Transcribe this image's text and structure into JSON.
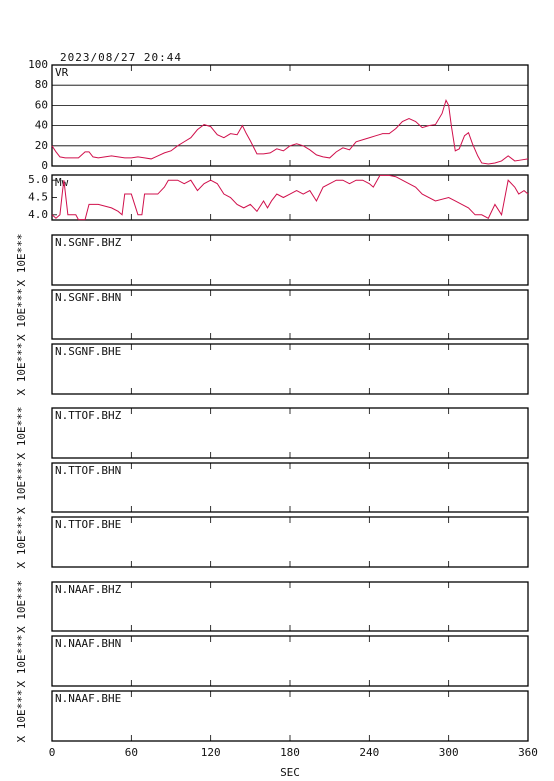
{
  "chart_data": [
    {
      "type": "line",
      "title": "2023/08/27 20:44",
      "ylabel": "VR",
      "color": "#d0104c",
      "x": [
        0,
        3,
        6,
        10,
        15,
        20,
        25,
        28,
        31,
        35,
        40,
        45,
        50,
        55,
        60,
        65,
        70,
        75,
        80,
        85,
        90,
        95,
        100,
        105,
        110,
        115,
        120,
        125,
        130,
        135,
        140,
        144,
        147,
        150,
        155,
        160,
        165,
        170,
        175,
        180,
        185,
        190,
        195,
        200,
        205,
        210,
        215,
        220,
        225,
        230,
        235,
        240,
        245,
        250,
        255,
        260,
        265,
        270,
        275,
        280,
        285,
        290,
        295,
        298,
        300,
        302,
        305,
        308,
        312,
        315,
        318,
        322,
        325,
        330,
        335,
        340,
        345,
        350,
        355,
        360
      ],
      "values": [
        20,
        14,
        9,
        8,
        8,
        8,
        14,
        14,
        9,
        8,
        9,
        10,
        9,
        8,
        8,
        9,
        8,
        7,
        10,
        13,
        15,
        20,
        24,
        28,
        36,
        41,
        39,
        31,
        28,
        32,
        31,
        40,
        32,
        25,
        12,
        12,
        13,
        17,
        15,
        20,
        22,
        20,
        16,
        11,
        9,
        8,
        14,
        18,
        16,
        24,
        26,
        28,
        30,
        32,
        32,
        37,
        44,
        47,
        44,
        38,
        40,
        41,
        52,
        65,
        60,
        40,
        15,
        17,
        30,
        33,
        22,
        10,
        3,
        2,
        3,
        5,
        10,
        5,
        6,
        7
      ],
      "ylim": [
        0,
        100
      ],
      "yticks": [
        0,
        20,
        40,
        60,
        80,
        100
      ],
      "grid": true,
      "xlim": [
        0,
        360
      ],
      "xticks": [
        0,
        60,
        120,
        180,
        240,
        300,
        360
      ]
    },
    {
      "type": "line",
      "ylabel": "Mw",
      "color": "#d0104c",
      "x": [
        0,
        3,
        6,
        8,
        9,
        12,
        18,
        20,
        25,
        28,
        35,
        45,
        50,
        53,
        55,
        60,
        65,
        68,
        70,
        80,
        85,
        88,
        95,
        100,
        105,
        110,
        115,
        120,
        125,
        130,
        135,
        140,
        145,
        150,
        155,
        160,
        163,
        166,
        170,
        175,
        180,
        185,
        190,
        195,
        200,
        205,
        210,
        215,
        220,
        225,
        230,
        235,
        240,
        243,
        248,
        255,
        260,
        265,
        270,
        275,
        280,
        290,
        300,
        305,
        310,
        315,
        320,
        325,
        330,
        335,
        340,
        345,
        350,
        353,
        357,
        360
      ],
      "values": [
        4.0,
        3.9,
        4.0,
        4.7,
        5.0,
        4.0,
        4.0,
        3.86,
        3.86,
        4.3,
        4.3,
        4.2,
        4.1,
        4.0,
        4.6,
        4.6,
        4.0,
        4.0,
        4.6,
        4.6,
        4.8,
        5.0,
        5.0,
        4.9,
        5.0,
        4.7,
        4.9,
        5.0,
        4.9,
        4.6,
        4.5,
        4.3,
        4.2,
        4.3,
        4.1,
        4.4,
        4.2,
        4.4,
        4.6,
        4.5,
        4.6,
        4.7,
        4.6,
        4.7,
        4.4,
        4.8,
        4.9,
        5.0,
        5.0,
        4.9,
        5.0,
        5.0,
        4.9,
        4.8,
        5.14,
        5.14,
        5.1,
        5.0,
        4.9,
        4.8,
        4.6,
        4.4,
        4.5,
        4.4,
        4.3,
        4.2,
        4.0,
        4.0,
        3.9,
        4.3,
        4.0,
        5.0,
        4.8,
        4.6,
        4.7,
        4.6
      ],
      "ylim": [
        3.85,
        5.15
      ],
      "yticks": [
        {
          "value": 4,
          "label": "4.0"
        },
        4.5,
        {
          "value": 5,
          "label": "5.0"
        }
      ],
      "grid": false,
      "xlim": [
        0,
        360
      ],
      "xticks": [
        0,
        60,
        120,
        180,
        240,
        300,
        360
      ]
    },
    {
      "type": "waveform",
      "title": "N.SGNF.BHZ",
      "ylabel": "X 10E***",
      "xlim": [
        0,
        360
      ],
      "xticks": [
        0,
        60,
        120,
        180,
        240,
        300,
        360
      ]
    },
    {
      "type": "waveform",
      "title": "N.SGNF.BHN",
      "ylabel": "X 10E***",
      "xlim": [
        0,
        360
      ],
      "xticks": [
        0,
        60,
        120,
        180,
        240,
        300,
        360
      ]
    },
    {
      "type": "waveform",
      "title": "N.SGNF.BHE",
      "ylabel": "X 10E***",
      "xlim": [
        0,
        360
      ],
      "xticks": [
        0,
        60,
        120,
        180,
        240,
        300,
        360
      ]
    },
    {
      "type": "waveform",
      "title": "N.TTOF.BHZ",
      "ylabel": "X 10E***",
      "xlim": [
        0,
        360
      ],
      "xticks": [
        0,
        60,
        120,
        180,
        240,
        300,
        360
      ]
    },
    {
      "type": "waveform",
      "title": "N.TTOF.BHN",
      "ylabel": "X 10E***",
      "xlim": [
        0,
        360
      ],
      "xticks": [
        0,
        60,
        120,
        180,
        240,
        300,
        360
      ]
    },
    {
      "type": "waveform",
      "title": "N.TTOF.BHE",
      "ylabel": "X 10E***",
      "xlim": [
        0,
        360
      ],
      "xticks": [
        0,
        60,
        120,
        180,
        240,
        300,
        360
      ]
    },
    {
      "type": "waveform",
      "title": "N.NAAF.BHZ",
      "ylabel": "X 10E***",
      "xlim": [
        0,
        360
      ],
      "xticks": [
        0,
        60,
        120,
        180,
        240,
        300,
        360
      ]
    },
    {
      "type": "waveform",
      "title": "N.NAAF.BHN",
      "ylabel": "X 10E***",
      "xlim": [
        0,
        360
      ],
      "xticks": [
        0,
        60,
        120,
        180,
        240,
        300,
        360
      ]
    },
    {
      "type": "waveform",
      "title": "N.NAAF.BHE",
      "ylabel": "X 10E***",
      "xlim": [
        0,
        360
      ],
      "xticks": [
        0,
        60,
        120,
        180,
        240,
        300,
        360
      ],
      "xlabel": "SEC"
    }
  ]
}
